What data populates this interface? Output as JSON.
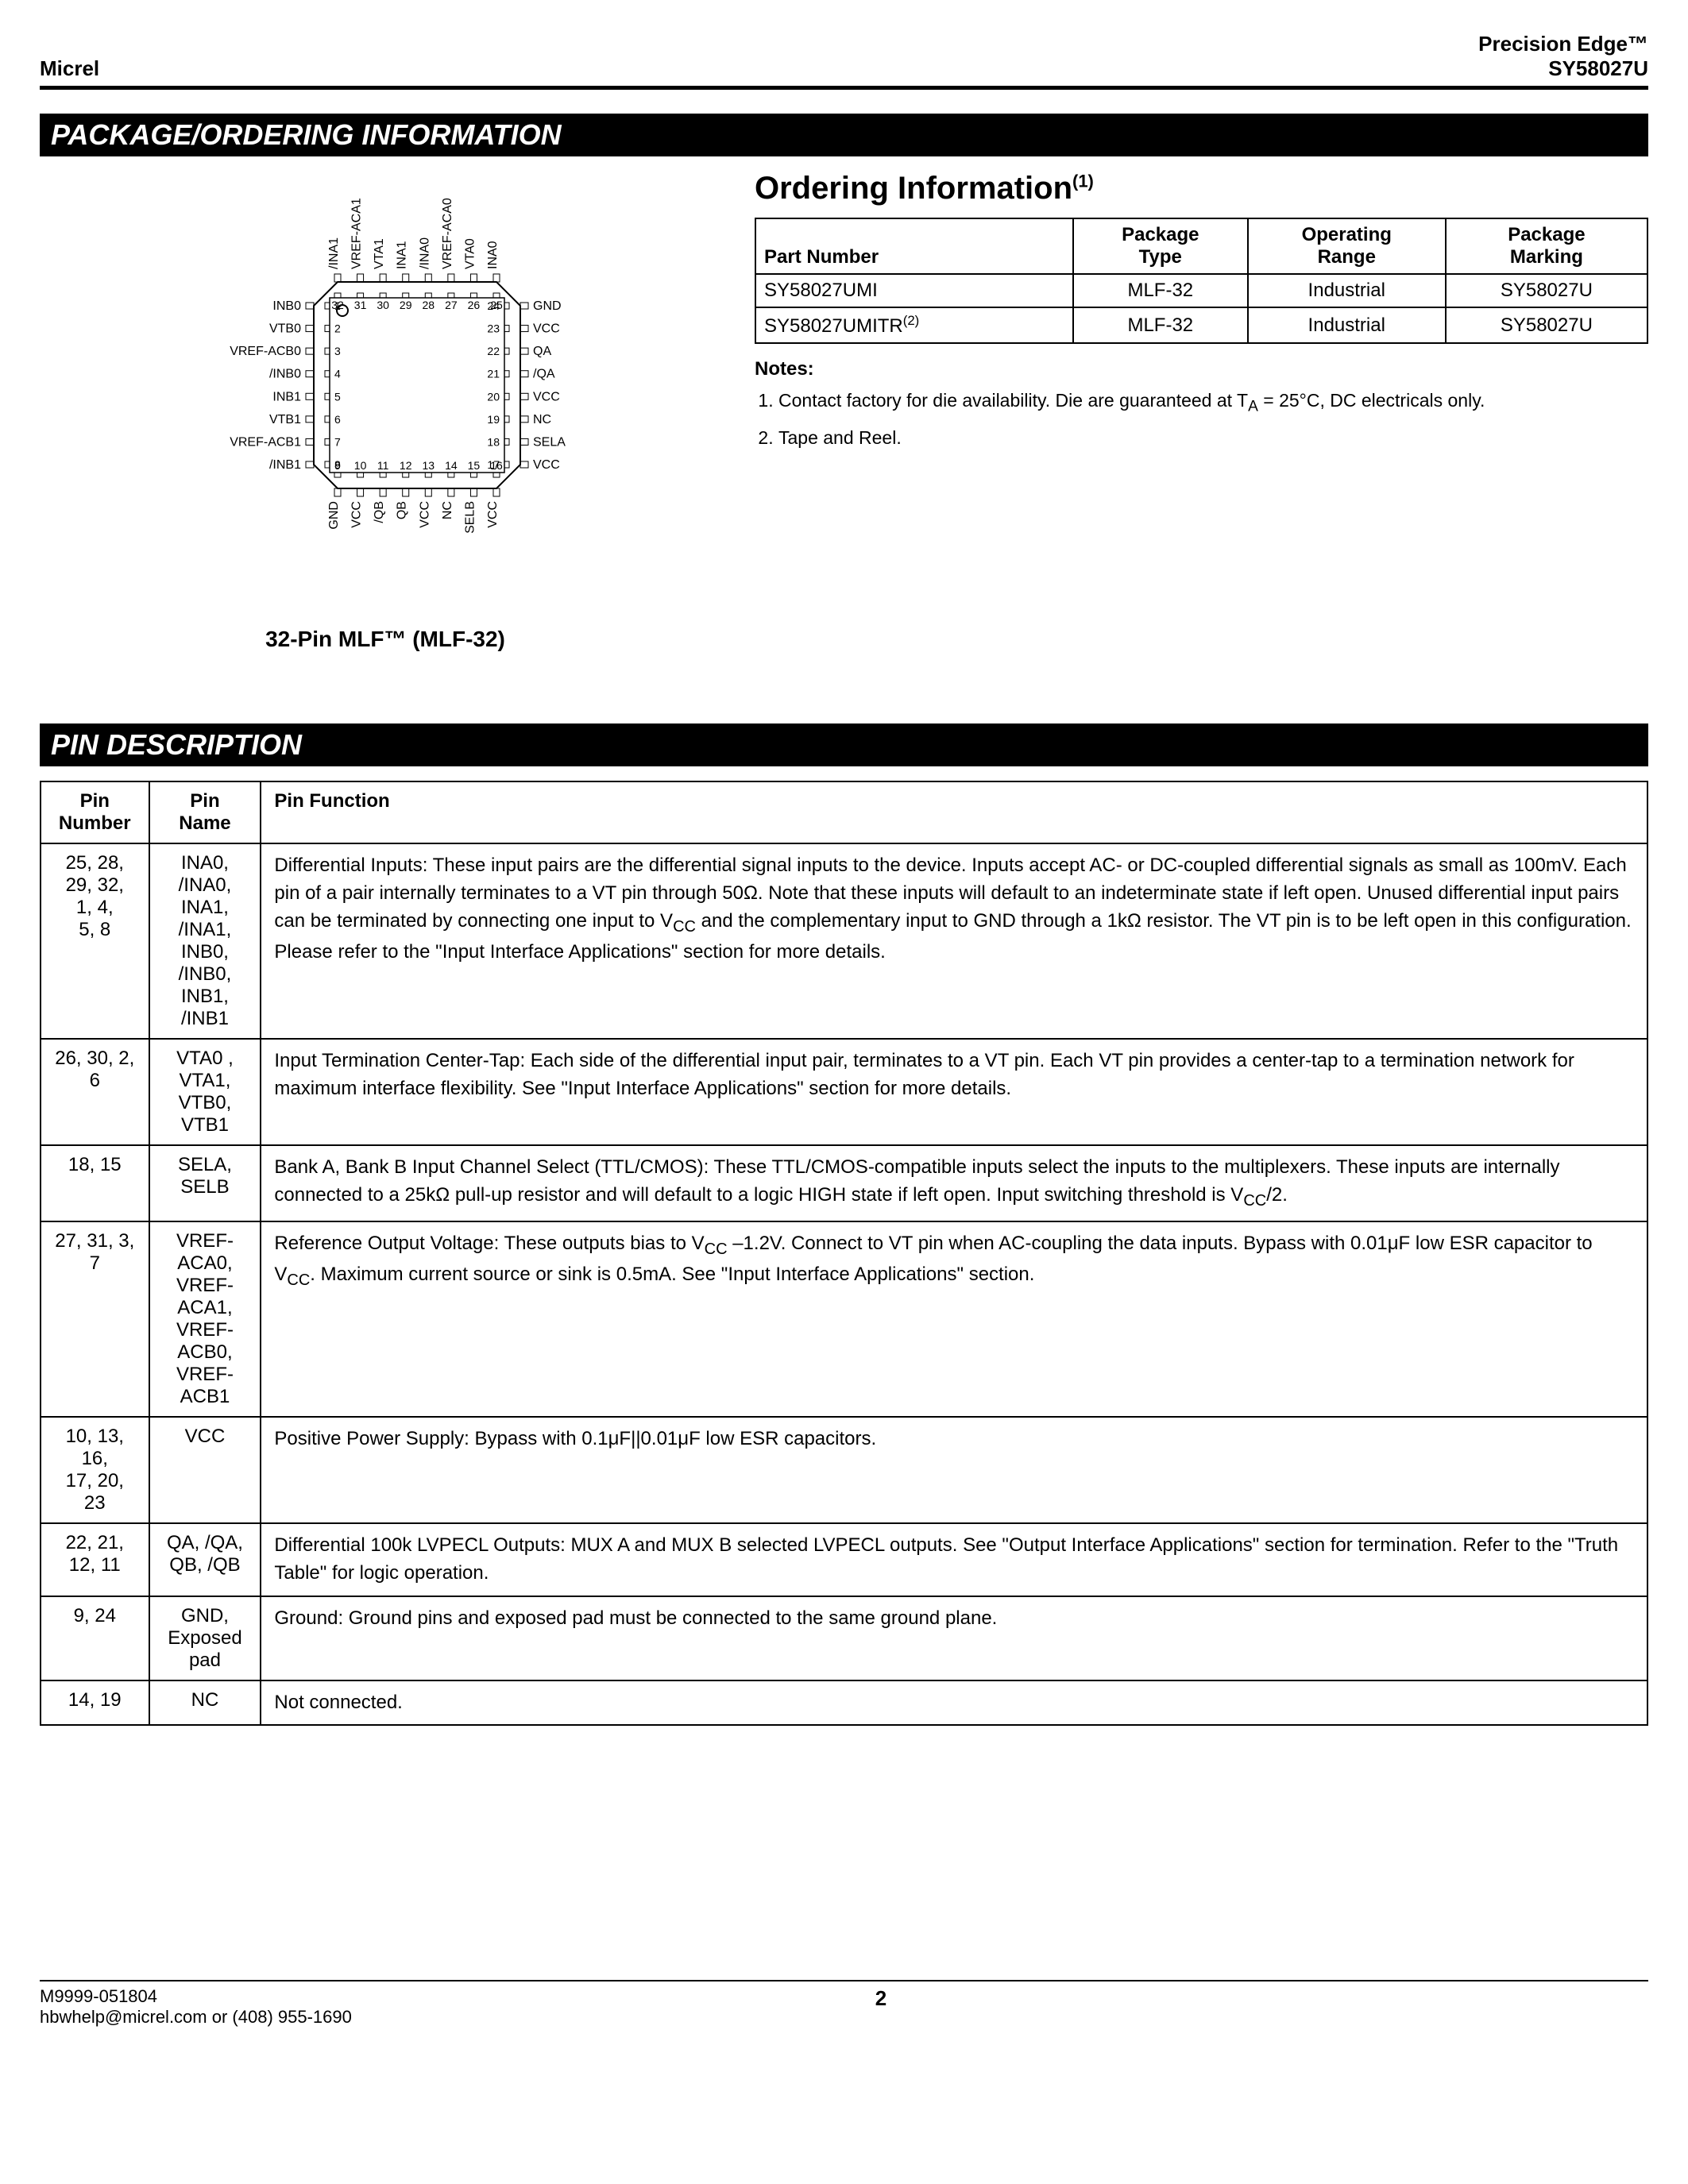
{
  "header": {
    "left": "Micrel",
    "right_line1": "Precision Edge™",
    "right_line2": "SY58027U"
  },
  "section1_title": "PACKAGE/ORDERING INFORMATION",
  "chip": {
    "caption": "32-Pin MLF™ (MLF-32)",
    "body_size": 260,
    "chamfer": 30,
    "colors": {
      "stroke": "#000000",
      "fill": "#ffffff"
    },
    "left_pins": [
      {
        "n": 1,
        "l": "INB0"
      },
      {
        "n": 2,
        "l": "VTB0"
      },
      {
        "n": 3,
        "l": "VREF-ACB0"
      },
      {
        "n": 4,
        "l": "/INB0"
      },
      {
        "n": 5,
        "l": "INB1"
      },
      {
        "n": 6,
        "l": "VTB1"
      },
      {
        "n": 7,
        "l": "VREF-ACB1"
      },
      {
        "n": 8,
        "l": "/INB1"
      }
    ],
    "right_pins": [
      {
        "n": 24,
        "l": "GND"
      },
      {
        "n": 23,
        "l": "VCC"
      },
      {
        "n": 22,
        "l": "QA"
      },
      {
        "n": 21,
        "l": "/QA"
      },
      {
        "n": 20,
        "l": "VCC"
      },
      {
        "n": 19,
        "l": "NC"
      },
      {
        "n": 18,
        "l": "SELA"
      },
      {
        "n": 17,
        "l": "VCC"
      }
    ],
    "top_pins": [
      {
        "n": 32,
        "l": "/INA1"
      },
      {
        "n": 31,
        "l": "VREF-ACA1"
      },
      {
        "n": 30,
        "l": "VTA1"
      },
      {
        "n": 29,
        "l": "INA1"
      },
      {
        "n": 28,
        "l": "/INA0"
      },
      {
        "n": 27,
        "l": "VREF-ACA0"
      },
      {
        "n": 26,
        "l": "VTA0"
      },
      {
        "n": 25,
        "l": "INA0"
      }
    ],
    "bot_pins": [
      {
        "n": 9,
        "l": "GND"
      },
      {
        "n": 10,
        "l": "VCC"
      },
      {
        "n": 11,
        "l": "/QB"
      },
      {
        "n": 12,
        "l": "QB"
      },
      {
        "n": 13,
        "l": "VCC"
      },
      {
        "n": 14,
        "l": "NC"
      },
      {
        "n": 15,
        "l": "SELB"
      },
      {
        "n": 16,
        "l": "VCC"
      }
    ]
  },
  "ordering": {
    "title": "Ordering Information",
    "title_sup": "(1)",
    "columns": [
      "Part  Number",
      "Package Type",
      "Operating Range",
      "Package Marking"
    ],
    "rows": [
      [
        "SY58027UMI",
        "MLF-32",
        "Industrial",
        "SY58027U"
      ],
      [
        "SY58027UMITR(2)",
        "MLF-32",
        "Industrial",
        "SY58027U"
      ]
    ],
    "notes_h": "Notes:",
    "notes": [
      "Contact factory for die availability. Die are guaranteed at T_A = 25°C, DC electricals only.",
      "Tape and Reel."
    ]
  },
  "section2_title": "PIN DESCRIPTION",
  "pin_table": {
    "columns": [
      "Pin Number",
      "Pin Name",
      "Pin Function"
    ],
    "rows": [
      {
        "num": "25, 28,\n29, 32,\n1, 4,\n5, 8",
        "name": "INA0, /INA0,\nINA1, /INA1,\nINB0, /INB0,\nINB1, /INB1",
        "fn": "Differential Inputs:  These input pairs are the differential signal inputs to the device. Inputs accept AC- or DC-coupled differential signals as small as 100mV. Each pin of a pair internally terminates to a VT pin through 50Ω. Note that these inputs will default to an indeterminate state if left open. Unused differential input pairs can be terminated by connecting one input to V_CC and the complementary input to GND through a 1kΩ resistor. The VT pin is to be left open in this configuration. Please refer to the \"Input Interface Applications\" section for more details."
      },
      {
        "num": "26, 30, 2, 6",
        "name": "VTA0 , VTA1,\nVTB0, VTB1",
        "fn": "Input Termination Center-Tap:  Each side of the differential input pair, terminates to a VT pin. Each VT pin provides a center-tap to a termination network for maximum interface flexibility. See \"Input Interface Applications\" section for more details."
      },
      {
        "num": "18, 15",
        "name": "SELA, SELB",
        "fn": "Bank A, Bank B Input Channel Select (TTL/CMOS):  These TTL/CMOS-compatible inputs select the inputs to the multiplexers. These inputs are internally connected to a 25kΩ pull-up resistor and will default to a logic HIGH state if left open. Input switching threshold is V_CC/2."
      },
      {
        "num": "27, 31, 3, 7",
        "name": "VREF-ACA0,\nVREF-ACA1,\nVREF-ACB0,\nVREF-ACB1",
        "fn": "Reference Output Voltage:  These outputs bias to V_CC –1.2V. Connect to VT pin when AC-coupling the data inputs. Bypass with 0.01μF low ESR capacitor to V_CC. Maximum current source or sink is 0.5mA. See \"Input Interface Applications\" section."
      },
      {
        "num": "10, 13, 16,\n17, 20, 23",
        "name": "VCC",
        "fn": "Positive Power Supply:  Bypass with 0.1μF||0.01μF low ESR capacitors."
      },
      {
        "num": "22, 21,\n12, 11",
        "name": "QA, /QA,\nQB, /QB",
        "fn": "Differential 100k LVPECL Outputs:  MUX A and MUX B selected LVPECL outputs. See \"Output Interface Applications\" section for termination. Refer to the \"Truth Table\" for logic operation."
      },
      {
        "num": "9, 24",
        "name": "GND,\nExposed pad",
        "fn": "Ground:  Ground pins and exposed pad must be connected to the same ground plane."
      },
      {
        "num": "14, 19",
        "name": "NC",
        "fn": "Not connected."
      }
    ]
  },
  "footer": {
    "left_line1": "M9999-051804",
    "left_line2": "hbwhelp@micrel.com or (408) 955-1690",
    "page": "2"
  }
}
